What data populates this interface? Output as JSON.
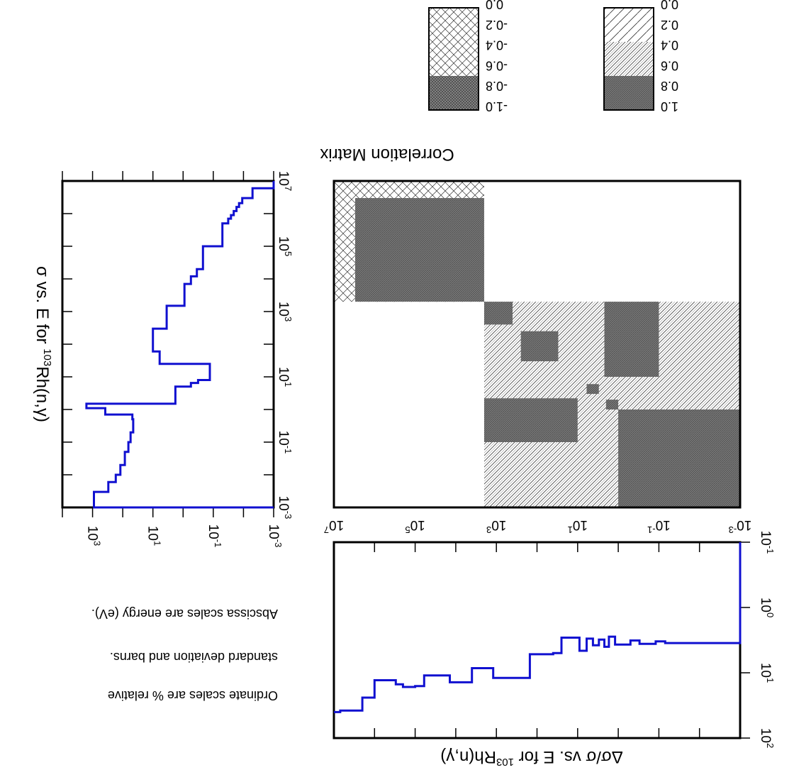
{
  "notes": {
    "line1": "Ordinate scales are % relative",
    "line2": "standard deviation and barns.",
    "line3": "Abscissa scales are energy (eV)."
  },
  "chart_data": [
    {
      "id": "cross_section",
      "type": "line",
      "step": true,
      "orientation": "upside-down",
      "title_pre": "σ vs. E for ",
      "title_sup": "103",
      "title_post": "Rh(n,γ)",
      "x_scale": "log",
      "xlim": [
        0.001,
        10000000
      ],
      "y_scale": "log",
      "ylim": [
        0.001,
        10000
      ],
      "x_ticks": [
        {
          "base": "10",
          "exp": "-3"
        },
        {
          "base": "10",
          "exp": "-1"
        },
        {
          "base": "10",
          "exp": "1"
        },
        {
          "base": "10",
          "exp": "3"
        },
        {
          "base": "10",
          "exp": "5"
        },
        {
          "base": "10",
          "exp": "7"
        }
      ],
      "y_ticks": [
        {
          "base": "10",
          "exp": "3"
        },
        {
          "base": "10",
          "exp": "1"
        },
        {
          "base": "10",
          "exp": "-1"
        },
        {
          "base": "10",
          "exp": "-3"
        }
      ],
      "color": "#1010d0",
      "points": [
        [
          0.001,
          0.001
        ],
        [
          0.001,
          900
        ],
        [
          0.003,
          900
        ],
        [
          0.003,
          300
        ],
        [
          0.006,
          300
        ],
        [
          0.006,
          170
        ],
        [
          0.01,
          170
        ],
        [
          0.01,
          120
        ],
        [
          0.02,
          120
        ],
        [
          0.02,
          85
        ],
        [
          0.05,
          85
        ],
        [
          0.05,
          65
        ],
        [
          0.1,
          65
        ],
        [
          0.1,
          55
        ],
        [
          0.2,
          55
        ],
        [
          0.2,
          45
        ],
        [
          0.5,
          45
        ],
        [
          0.5,
          48
        ],
        [
          0.7,
          48
        ],
        [
          0.7,
          380
        ],
        [
          1.1,
          380
        ],
        [
          1.1,
          1600
        ],
        [
          1.5,
          1600
        ],
        [
          1.5,
          1.8
        ],
        [
          5,
          1.8
        ],
        [
          5,
          0.55
        ],
        [
          6.5,
          0.55
        ],
        [
          6.5,
          0.32
        ],
        [
          8,
          0.32
        ],
        [
          8,
          0.13
        ],
        [
          25,
          0.13
        ],
        [
          25,
          6
        ],
        [
          60,
          6
        ],
        [
          60,
          10
        ],
        [
          300,
          10
        ],
        [
          300,
          3.5
        ],
        [
          1500,
          3.5
        ],
        [
          1500,
          0.9
        ],
        [
          7000,
          0.9
        ],
        [
          7000,
          0.55
        ],
        [
          12000,
          0.55
        ],
        [
          12000,
          0.35
        ],
        [
          20000,
          0.35
        ],
        [
          20000,
          0.22
        ],
        [
          100000,
          0.22
        ],
        [
          100000,
          0.05
        ],
        [
          500000,
          0.05
        ],
        [
          500000,
          0.032
        ],
        [
          700000,
          0.032
        ],
        [
          700000,
          0.026
        ],
        [
          900000,
          0.026
        ],
        [
          900000,
          0.021
        ],
        [
          1200000,
          0.021
        ],
        [
          1200000,
          0.017
        ],
        [
          1600000,
          0.017
        ],
        [
          1600000,
          0.014
        ],
        [
          2100000,
          0.014
        ],
        [
          2100000,
          0.011
        ],
        [
          3000000,
          0.011
        ],
        [
          3000000,
          0.005
        ],
        [
          6000000,
          0.005
        ],
        [
          6000000,
          0.001
        ],
        [
          10000000,
          0.001
        ]
      ]
    },
    {
      "id": "correlation_matrix",
      "type": "heatmap",
      "orientation": "upside-down",
      "title": "Correlation Matrix",
      "x_scale": "log",
      "xlim": [
        0.001,
        10000000
      ],
      "ylim": [
        0.001,
        10000000
      ],
      "x_ticks": [
        {
          "base": "10",
          "exp": "-3"
        },
        {
          "base": "10",
          "exp": "-1"
        },
        {
          "base": "10",
          "exp": "1"
        },
        {
          "base": "10",
          "exp": "3"
        },
        {
          "base": "10",
          "exp": "5"
        },
        {
          "base": "10",
          "exp": "7"
        }
      ],
      "legend_positive": [
        "1.0",
        "0.8",
        "0.6",
        "0.4",
        "0.2",
        "0.0"
      ],
      "legend_negative": [
        "-1.0",
        "-0.8",
        "-0.6",
        "-0.4",
        "-0.2",
        "0.0"
      ],
      "blocks": [
        {
          "e1": [
            0.001,
            1
          ],
          "e2": [
            0.001,
            1
          ],
          "corr": 0.9
        },
        {
          "e1": [
            1,
            2
          ],
          "e2": [
            1,
            2
          ],
          "corr": 0.9
        },
        {
          "e1": [
            3,
            6
          ],
          "e2": [
            3,
            6
          ],
          "corr": 0.9
        },
        {
          "e1": [
            30,
            250
          ],
          "e2": [
            30,
            250
          ],
          "corr": 0.9
        },
        {
          "e1": [
            400,
            2000
          ],
          "e2": [
            400,
            2000
          ],
          "corr": 0.9
        },
        {
          "e1": [
            2000,
            3000000
          ],
          "e2": [
            2000,
            3000000
          ],
          "corr": 0.9
        },
        {
          "e1": [
            0.1,
            2.2
          ],
          "e2": [
            10,
            2000
          ],
          "corr": 0.9
        },
        {
          "e1": [
            10,
            2000
          ],
          "e2": [
            0.1,
            2.2
          ],
          "corr": 0.9
        },
        {
          "e1": [
            2000,
            10000000
          ],
          "e2": [
            0.001,
            2000
          ],
          "corr": 0.0
        },
        {
          "e1": [
            0.001,
            2000
          ],
          "e2": [
            2000,
            10000000
          ],
          "corr": 0.0
        },
        {
          "e1": [
            0.001,
            2000
          ],
          "e2": [
            0.001,
            2000
          ],
          "corr": 0.45
        },
        {
          "e1": [
            2000,
            10000000
          ],
          "e2": [
            2000,
            10000000
          ],
          "corr": -0.3
        }
      ]
    },
    {
      "id": "relative_uncertainty",
      "type": "line",
      "step": true,
      "orientation": "upside-down",
      "title_pre": "Δσ/σ vs. E for ",
      "title_sup": "103",
      "title_post": "Rh(n,γ)",
      "x_scale": "log",
      "xlim": [
        0.001,
        10000000
      ],
      "y_scale": "log",
      "ylim": [
        0.1,
        100
      ],
      "x_ticks": [
        {
          "base": "10",
          "exp": "-3"
        },
        {
          "base": "10",
          "exp": "-1"
        },
        {
          "base": "10",
          "exp": "1"
        },
        {
          "base": "10",
          "exp": "3"
        },
        {
          "base": "10",
          "exp": "5"
        },
        {
          "base": "10",
          "exp": "7"
        }
      ],
      "y_ticks": [
        {
          "base": "10",
          "exp": "-1"
        },
        {
          "base": "10",
          "exp": "0"
        },
        {
          "base": "10",
          "exp": "1"
        },
        {
          "base": "10",
          "exp": "2"
        }
      ],
      "color": "#1010d0",
      "points": [
        [
          0.001,
          0.1
        ],
        [
          0.001,
          3.5
        ],
        [
          0.07,
          3.5
        ],
        [
          0.07,
          3.3
        ],
        [
          0.12,
          3.3
        ],
        [
          0.12,
          3.6
        ],
        [
          0.3,
          3.6
        ],
        [
          0.3,
          3.2
        ],
        [
          0.5,
          3.2
        ],
        [
          0.5,
          3.7
        ],
        [
          1.2,
          3.7
        ],
        [
          1.2,
          2.8
        ],
        [
          1.7,
          2.8
        ],
        [
          1.7,
          4.0
        ],
        [
          2.2,
          4.0
        ],
        [
          2.2,
          3.1
        ],
        [
          3,
          3.1
        ],
        [
          3,
          3.8
        ],
        [
          4.2,
          3.8
        ],
        [
          4.2,
          3.0
        ],
        [
          6,
          3.0
        ],
        [
          6,
          4.6
        ],
        [
          9,
          4.6
        ],
        [
          9,
          2.9
        ],
        [
          25,
          2.9
        ],
        [
          25,
          5.0
        ],
        [
          40,
          5.0
        ],
        [
          40,
          5.2
        ],
        [
          150,
          5.2
        ],
        [
          150,
          12
        ],
        [
          1200,
          12
        ],
        [
          1200,
          8.5
        ],
        [
          4000,
          8.5
        ],
        [
          4000,
          14
        ],
        [
          14000,
          14
        ],
        [
          14000,
          11
        ],
        [
          60000,
          11
        ],
        [
          60000,
          16
        ],
        [
          100000,
          16
        ],
        [
          100000,
          16.5
        ],
        [
          200000,
          16.5
        ],
        [
          200000,
          15
        ],
        [
          300000,
          15
        ],
        [
          300000,
          13
        ],
        [
          1000000,
          13
        ],
        [
          1000000,
          24
        ],
        [
          2000000,
          24
        ],
        [
          2000000,
          38
        ],
        [
          7000000,
          38
        ],
        [
          7000000,
          40
        ],
        [
          10000000,
          40
        ]
      ]
    }
  ]
}
